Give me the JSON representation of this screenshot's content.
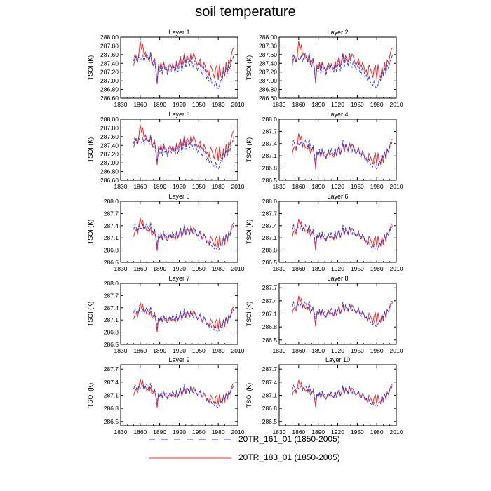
{
  "title": "soil temperature",
  "legend": [
    {
      "label": "20TR_161_01 (1850-2005)",
      "color": "#3b3bdc",
      "style": "dashed"
    },
    {
      "label": "20TR_183_01 (1850-2005)",
      "color": "#e83030",
      "style": "solid"
    }
  ],
  "chart_data": [
    {
      "type": "line",
      "title": "Layer 1",
      "ylabel": "TSOI  (K)",
      "xlim": [
        1830,
        2010
      ],
      "xticks": [
        1830,
        1860,
        1890,
        1920,
        1950,
        1980,
        2010
      ],
      "ylim": [
        286.6,
        288.0
      ],
      "yticks": [
        "286.60",
        "286.80",
        "287.00",
        "287.20",
        "287.40",
        "287.60",
        "287.80",
        "288.00"
      ],
      "ytick_values": [
        286.6,
        286.8,
        287.0,
        287.2,
        287.4,
        287.6,
        287.8,
        288.0
      ],
      "amp": 1.0,
      "base": 0.0
    },
    {
      "type": "line",
      "title": "Layer 2",
      "ylabel": "TSOI  (K)",
      "xlim": [
        1830,
        2010
      ],
      "xticks": [
        1830,
        1860,
        1890,
        1920,
        1950,
        1980,
        2010
      ],
      "ylim": [
        286.6,
        288.0
      ],
      "yticks": [
        "286.60",
        "286.80",
        "287.00",
        "287.20",
        "287.40",
        "287.60",
        "287.80",
        "288.00"
      ],
      "ytick_values": [
        286.6,
        286.8,
        287.0,
        287.2,
        287.4,
        287.6,
        287.8,
        288.0
      ],
      "amp": 0.97,
      "base": 0.0
    },
    {
      "type": "line",
      "title": "Layer 3",
      "ylabel": "TSOI  (K)",
      "xlim": [
        1830,
        2010
      ],
      "xticks": [
        1830,
        1860,
        1890,
        1920,
        1950,
        1980,
        2010
      ],
      "ylim": [
        286.6,
        288.0
      ],
      "yticks": [
        "286.60",
        "286.80",
        "287.00",
        "287.20",
        "287.40",
        "287.60",
        "287.80",
        "288.00"
      ],
      "ytick_values": [
        286.6,
        286.8,
        287.0,
        287.2,
        287.4,
        287.6,
        287.8,
        288.0
      ],
      "amp": 0.93,
      "base": 0.0
    },
    {
      "type": "line",
      "title": "Layer 4",
      "ylabel": "TSOI  (K)",
      "xlim": [
        1830,
        2010
      ],
      "xticks": [
        1830,
        1860,
        1890,
        1920,
        1950,
        1980,
        2010
      ],
      "ylim": [
        286.5,
        288.0
      ],
      "yticks": [
        "286.5",
        "286.8",
        "287.1",
        "287.4",
        "287.7",
        "288.0"
      ],
      "ytick_values": [
        286.5,
        286.8,
        287.1,
        287.4,
        287.7,
        288.0
      ],
      "amp": 0.88,
      "base": 0.0
    },
    {
      "type": "line",
      "title": "Layer 5",
      "ylabel": "TSOI  (K)",
      "xlim": [
        1830,
        2010
      ],
      "xticks": [
        1830,
        1860,
        1890,
        1920,
        1950,
        1980,
        2010
      ],
      "ylim": [
        286.5,
        288.0
      ],
      "yticks": [
        "286.5",
        "286.8",
        "287.1",
        "287.4",
        "287.7",
        "288.0"
      ],
      "ytick_values": [
        286.5,
        286.8,
        287.1,
        287.4,
        287.7,
        288.0
      ],
      "amp": 0.82,
      "base": -0.02
    },
    {
      "type": "line",
      "title": "Layer 6",
      "ylabel": "TSOI  (K)",
      "xlim": [
        1830,
        2010
      ],
      "xticks": [
        1830,
        1860,
        1890,
        1920,
        1950,
        1980,
        2010
      ],
      "ylim": [
        286.5,
        288.0
      ],
      "yticks": [
        "286.5",
        "286.8",
        "287.1",
        "287.4",
        "287.7",
        "288.0"
      ],
      "ytick_values": [
        286.5,
        286.8,
        287.1,
        287.4,
        287.7,
        288.0
      ],
      "amp": 0.78,
      "base": -0.03
    },
    {
      "type": "line",
      "title": "Layer 7",
      "ylabel": "TSOI  (K)",
      "xlim": [
        1830,
        2010
      ],
      "xticks": [
        1830,
        1860,
        1890,
        1920,
        1950,
        1980,
        2010
      ],
      "ylim": [
        286.5,
        288.0
      ],
      "yticks": [
        "286.5",
        "286.8",
        "287.1",
        "287.4",
        "287.7",
        "288.0"
      ],
      "ytick_values": [
        286.5,
        286.8,
        287.1,
        287.4,
        287.7,
        288.0
      ],
      "amp": 0.74,
      "base": -0.04
    },
    {
      "type": "line",
      "title": "Layer 8",
      "ylabel": "TSOI  (K)",
      "xlim": [
        1830,
        2010
      ],
      "xticks": [
        1830,
        1860,
        1890,
        1920,
        1950,
        1980,
        2010
      ],
      "ylim": [
        286.4,
        287.8
      ],
      "yticks": [
        "286.5",
        "286.8",
        "287.1",
        "287.4",
        "287.7"
      ],
      "ytick_values": [
        286.5,
        286.8,
        287.1,
        287.4,
        287.7
      ],
      "amp": 0.7,
      "base": -0.05
    },
    {
      "type": "line",
      "title": "Layer 9",
      "ylabel": "TSOI  (K)",
      "xlim": [
        1830,
        2010
      ],
      "xticks": [
        1830,
        1860,
        1890,
        1920,
        1950,
        1980,
        2010
      ],
      "ylim": [
        286.4,
        287.8
      ],
      "yticks": [
        "286.5",
        "286.8",
        "287.1",
        "287.4",
        "287.7"
      ],
      "ytick_values": [
        286.5,
        286.8,
        287.1,
        287.4,
        287.7
      ],
      "amp": 0.66,
      "base": -0.06
    },
    {
      "type": "line",
      "title": "Layer 10",
      "ylabel": "TSOI  (K)",
      "xlim": [
        1830,
        2010
      ],
      "xticks": [
        1830,
        1860,
        1890,
        1920,
        1950,
        1980,
        2010
      ],
      "ylim": [
        286.4,
        287.8
      ],
      "yticks": [
        "286.5",
        "286.8",
        "287.1",
        "287.4",
        "287.7"
      ],
      "ytick_values": [
        286.5,
        286.8,
        287.1,
        287.4,
        287.7
      ],
      "amp": 0.62,
      "base": -0.07
    }
  ],
  "anomaly_series": {
    "years": [
      1850,
      1852,
      1854,
      1856,
      1858,
      1860,
      1862,
      1864,
      1866,
      1868,
      1870,
      1872,
      1874,
      1876,
      1878,
      1880,
      1882,
      1884,
      1886,
      1888,
      1890,
      1892,
      1894,
      1896,
      1898,
      1900,
      1902,
      1904,
      1906,
      1908,
      1910,
      1912,
      1914,
      1916,
      1918,
      1920,
      1922,
      1924,
      1926,
      1928,
      1930,
      1932,
      1934,
      1936,
      1938,
      1940,
      1942,
      1944,
      1946,
      1948,
      1950,
      1952,
      1954,
      1956,
      1958,
      1960,
      1962,
      1964,
      1966,
      1968,
      1970,
      1972,
      1974,
      1976,
      1978,
      1980,
      1982,
      1984,
      1986,
      1988,
      1990,
      1992,
      1994,
      1996,
      1998,
      2000,
      2002,
      2004
    ],
    "run_161": [
      287.45,
      287.62,
      287.5,
      287.42,
      287.58,
      287.5,
      287.48,
      287.6,
      287.44,
      287.56,
      287.63,
      287.52,
      287.42,
      287.66,
      287.44,
      287.34,
      287.48,
      287.25,
      286.95,
      287.32,
      287.2,
      287.38,
      287.14,
      287.4,
      287.24,
      287.32,
      287.12,
      287.28,
      287.34,
      287.22,
      287.4,
      287.26,
      287.2,
      287.42,
      287.2,
      287.34,
      287.5,
      287.22,
      287.38,
      287.62,
      287.3,
      287.52,
      287.44,
      287.34,
      287.58,
      287.4,
      287.3,
      287.46,
      287.36,
      287.24,
      287.3,
      287.42,
      287.2,
      287.14,
      287.32,
      287.24,
      287.06,
      287.12,
      286.98,
      287.1,
      286.96,
      286.92,
      286.88,
      287.0,
      286.84,
      286.82,
      286.9,
      287.04,
      287.0,
      287.24,
      287.12,
      287.3,
      287.16,
      287.36,
      287.28,
      287.44,
      287.5,
      287.6
    ],
    "run_183": [
      287.35,
      287.5,
      287.56,
      287.44,
      287.62,
      287.92,
      287.72,
      287.84,
      287.58,
      287.66,
      287.52,
      287.54,
      287.48,
      287.62,
      287.38,
      287.44,
      287.52,
      287.3,
      286.92,
      287.36,
      287.3,
      287.42,
      287.26,
      287.44,
      287.32,
      287.28,
      287.22,
      287.34,
      287.4,
      287.3,
      287.36,
      287.32,
      287.26,
      287.46,
      287.3,
      287.44,
      287.56,
      287.32,
      287.48,
      287.64,
      287.4,
      287.58,
      287.52,
      287.42,
      287.64,
      287.5,
      287.62,
      287.56,
      287.44,
      287.36,
      287.42,
      287.5,
      287.36,
      287.3,
      287.42,
      287.34,
      287.2,
      287.24,
      287.1,
      287.36,
      287.28,
      287.18,
      287.06,
      287.28,
      287.36,
      287.02,
      287.38,
      287.1,
      287.06,
      287.32,
      287.1,
      287.42,
      287.2,
      287.48,
      287.4,
      287.58,
      287.72,
      287.76
    ]
  }
}
